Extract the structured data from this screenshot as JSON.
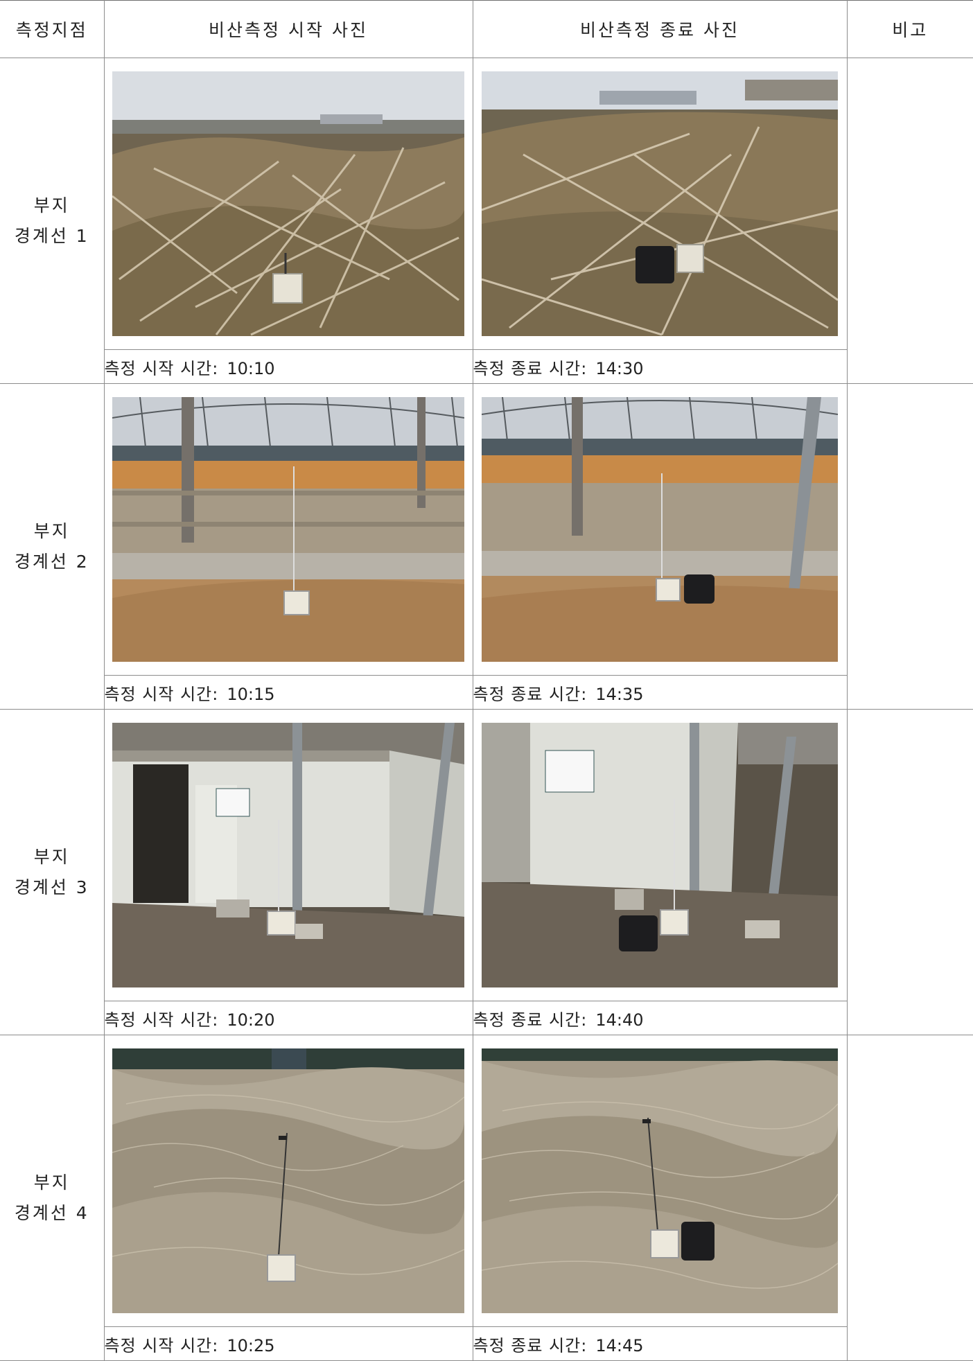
{
  "table": {
    "headers": {
      "location": "측정지점",
      "start_photo": "비산측정 시작 사진",
      "end_photo": "비산측정 종료 사진",
      "note": "비고"
    },
    "rows": [
      {
        "location_line1": "부지",
        "location_line2": "경계선 1",
        "start_label": "측정 시작 시간:",
        "start_time": "10:10",
        "end_label": "측정 종료 시간:",
        "end_time": "14:30",
        "scene": "dry-reeds-embankment"
      },
      {
        "location_line1": "부지",
        "location_line2": "경계선 2",
        "start_label": "측정 시작 시간:",
        "start_time": "10:15",
        "end_label": "측정 종료 시간:",
        "end_time": "14:35",
        "scene": "greenhouse-frame-soil"
      },
      {
        "location_line1": "부지",
        "location_line2": "경계선 3",
        "start_label": "측정 시작 시간:",
        "start_time": "10:20",
        "end_label": "측정 종료 시간:",
        "end_time": "14:40",
        "scene": "white-panel-building"
      },
      {
        "location_line1": "부지",
        "location_line2": "경계선 4",
        "start_label": "측정 시작 시간:",
        "start_time": "10:25",
        "end_label": "측정 종료 시간:",
        "end_time": "14:45",
        "scene": "dry-grass-mound"
      }
    ]
  }
}
